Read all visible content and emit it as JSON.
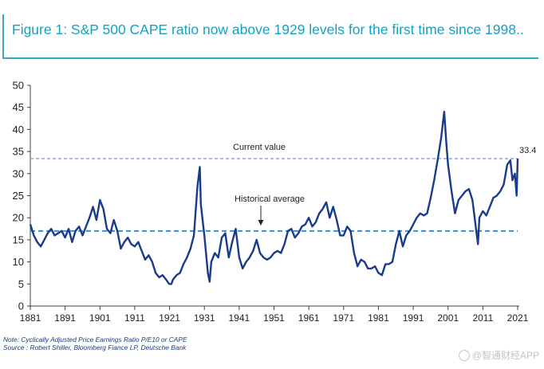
{
  "figure": {
    "title": "Figure 1: S&P 500 CAPE ratio now above 1929 levels for the first time since 1998..",
    "note": "Note: Cyclically Adjusted Price Earnings Ratio P/E10 or CAPE",
    "source": "Source : Robert Shiller, Bloomberg Fiance LP, Deutsche Bank"
  },
  "watermark": {
    "text": "@智通财经APP",
    "icon": "camera-icon"
  },
  "colors": {
    "title": "#14a0c4",
    "series": "#1a3a8c",
    "current_line": "#8aa6dd",
    "average_line": "#1e8fd6",
    "axis": "#404040",
    "notes": "#1e3c78"
  },
  "chart_data": {
    "type": "line",
    "title": "",
    "xlabel": "",
    "ylabel": "",
    "xlim": [
      1881,
      2021
    ],
    "ylim": [
      0,
      50
    ],
    "grid": false,
    "legend": "none",
    "x_ticks": [
      "1881",
      "1891",
      "1901",
      "1911",
      "1921",
      "1931",
      "1941",
      "1951",
      "1961",
      "1971",
      "1981",
      "1991",
      "2001",
      "2011",
      "2021"
    ],
    "y_ticks": [
      "0",
      "5",
      "10",
      "15",
      "20",
      "25",
      "30",
      "35",
      "40",
      "45",
      "50"
    ],
    "series": [
      {
        "name": "",
        "x": [
          1881,
          1882,
          1883,
          1884,
          1885,
          1886,
          1887,
          1888,
          1889,
          1890,
          1891,
          1892,
          1893,
          1894,
          1895,
          1896,
          1897,
          1898,
          1899,
          1900,
          1901,
          1902,
          1903,
          1904,
          1905,
          1906,
          1907,
          1908,
          1909,
          1910,
          1911,
          1912,
          1913,
          1914,
          1915,
          1916,
          1917,
          1918,
          1919,
          1920,
          1920.9,
          1921.5,
          1922,
          1923,
          1924,
          1925,
          1926,
          1927,
          1928,
          1929.0,
          1929.7,
          1930,
          1931,
          1932.0,
          1932.5,
          1933,
          1934,
          1935,
          1936,
          1937,
          1938,
          1939,
          1940,
          1941,
          1942,
          1943,
          1944,
          1945,
          1946,
          1947,
          1948,
          1949,
          1950,
          1951,
          1952,
          1953,
          1954,
          1955,
          1956,
          1957,
          1958,
          1959,
          1960,
          1961,
          1962,
          1963,
          1964,
          1965,
          1966,
          1967,
          1968,
          1969,
          1970,
          1971,
          1972,
          1973,
          1974,
          1975,
          1976,
          1977,
          1978,
          1979,
          1980,
          1981,
          1982,
          1983,
          1984,
          1985,
          1986,
          1987,
          1988,
          1989,
          1990,
          1991,
          1992,
          1993,
          1994,
          1995,
          1996,
          1997,
          1998,
          1999,
          1999.9,
          2000.5,
          2001,
          2002,
          2003,
          2004,
          2005,
          2006,
          2007,
          2008,
          2009.1,
          2009.6,
          2010,
          2011,
          2012,
          2013,
          2014,
          2015,
          2016,
          2017,
          2018,
          2018.9,
          2019.5,
          2020.2,
          2020.7,
          2021
        ],
        "values": [
          18.5,
          16,
          14.5,
          13.5,
          15,
          16.5,
          17.5,
          16,
          16.5,
          17,
          15.5,
          17.5,
          14.5,
          17,
          18,
          16,
          18,
          20,
          22.5,
          19.5,
          24,
          22,
          17.5,
          16.5,
          19.5,
          17,
          13,
          14.5,
          15.5,
          14,
          13.5,
          14.5,
          12.5,
          10.5,
          11.5,
          10,
          7.5,
          6.5,
          7,
          6,
          5,
          5,
          6,
          7,
          7.5,
          9.5,
          11,
          13,
          16,
          27,
          31.5,
          23,
          16,
          7.5,
          5.5,
          10,
          12,
          11,
          15.5,
          16.5,
          11,
          14.5,
          17.5,
          11,
          8.5,
          10,
          11,
          12.5,
          15,
          12,
          11,
          10.5,
          11,
          12,
          12.5,
          12,
          14,
          17,
          17.5,
          15.5,
          16.5,
          18,
          18.5,
          20,
          18,
          19,
          21,
          22,
          23.5,
          20,
          22.5,
          19.5,
          16,
          16,
          18,
          17,
          12,
          9,
          10.5,
          10,
          8.5,
          8.5,
          9,
          7.5,
          7,
          9.5,
          9.5,
          10,
          14,
          17,
          13.5,
          16,
          17,
          18.5,
          20,
          21,
          20.5,
          21,
          24.5,
          28.5,
          33,
          38,
          44,
          37,
          32,
          26,
          21,
          24,
          25,
          26,
          26.5,
          24,
          17,
          14,
          20,
          21.5,
          20.5,
          22.5,
          24.5,
          25,
          26,
          27.5,
          32,
          33,
          28.5,
          30,
          25,
          33.4
        ]
      }
    ],
    "reference_lines": [
      {
        "label": "Current value",
        "value": 33.4
      },
      {
        "label": "Historical average",
        "value": 17
      }
    ],
    "end_label": "33.4"
  }
}
